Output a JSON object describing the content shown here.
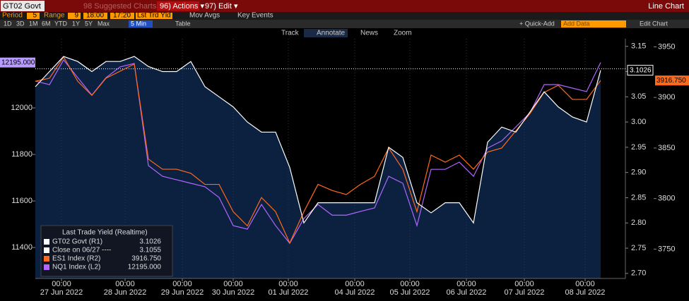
{
  "toolbar": {
    "security": "GT02 Govt",
    "suggested": "98 Suggested Charts",
    "actions": "96) Actions ▾",
    "edit": "97) Edit ▾",
    "view": "Line Chart"
  },
  "settings": {
    "period_label": "Period",
    "period": "5",
    "range_label": "Range",
    "range": "9",
    "from": "18:00",
    "to": "17:20",
    "field": "Lst Trd Yld",
    "mov_avgs": "Mov Avgs",
    "key_events": "Key Events"
  },
  "ranges": [
    "1D",
    "3D",
    "1M",
    "6M",
    "YTD",
    "1Y",
    "5Y",
    "Max"
  ],
  "interval": "5 Min",
  "table": "Table",
  "quick_add": "+ Quick-Add",
  "add_data": "Add Data",
  "edit_chart": "Edit Chart",
  "tools": [
    "Track",
    "Annotate",
    "News",
    "Zoom"
  ],
  "chart_data": {
    "type": "line",
    "legend_title": "Last Trade Yield (Realtime)",
    "grid": true,
    "x": [
      0,
      2,
      4,
      6,
      8,
      10,
      12,
      14,
      16,
      18,
      20,
      22,
      24,
      26,
      28,
      30,
      32,
      34,
      36,
      38,
      40,
      42,
      44,
      46,
      48,
      50,
      52,
      54,
      56,
      58,
      60,
      62,
      64,
      66,
      68,
      70,
      72,
      74,
      76,
      78,
      80
    ],
    "xlim": [
      0,
      83.5
    ],
    "xticks": [
      {
        "value": 3.7,
        "label": "27 Jun 2022",
        "time": "00:00"
      },
      {
        "value": 12.7,
        "label": "28 Jun 2022",
        "time": "00:00"
      },
      {
        "value": 20.8,
        "label": "29 Jun 2022",
        "time": "00:00"
      },
      {
        "value": 28,
        "label": "30 Jun 2022",
        "time": "00:00"
      },
      {
        "value": 35.8,
        "label": "01 Jul 2022",
        "time": "00:00"
      },
      {
        "value": 45.2,
        "label": "04 Jul 2022",
        "time": "00:00"
      },
      {
        "value": 53,
        "label": "05 Jul 2022",
        "time": "00:00"
      },
      {
        "value": 61,
        "label": "06 Jul 2022",
        "time": "00:00"
      },
      {
        "value": 69.2,
        "label": "07 Jul 2022",
        "time": "00:00"
      },
      {
        "value": 77.8,
        "label": "08 Jul 2022",
        "time": "00:00"
      }
    ],
    "ylim": [
      11267,
      12297
    ],
    "yticks": [
      11400,
      11600,
      11800,
      12000
    ],
    "y2lim": [
      2.69,
      3.165
    ],
    "y2ticks": [
      {
        "value": 2.7,
        "label": "2.70"
      },
      {
        "value": 2.75,
        "label": "2.75"
      },
      {
        "value": 2.8,
        "label": "2.80"
      },
      {
        "value": 2.85,
        "label": "2.85"
      },
      {
        "value": 2.9,
        "label": "2.90"
      },
      {
        "value": 2.95,
        "label": "2.95"
      },
      {
        "value": 3.0,
        "label": "3.00"
      },
      {
        "value": 3.05,
        "label": "3.05"
      },
      {
        "value": 3.1,
        "label": "3.10"
      },
      {
        "value": 3.15,
        "label": "3.15"
      }
    ],
    "y3lim": [
      3721,
      3958
    ],
    "y3ticks": [
      3750,
      3800,
      3850,
      3900,
      3950
    ],
    "reference": {
      "name": "Close on 06/27 ----",
      "value": 3.1055,
      "axis": "y2"
    },
    "series": [
      {
        "name": "GT02 Govt (R1)",
        "color": "#ffffff",
        "axis": "y2",
        "last_label": "3.1026",
        "values": [
          3.07,
          3.1,
          3.13,
          3.12,
          3.1,
          3.12,
          3.12,
          3.13,
          3.11,
          3.1,
          3.1,
          3.12,
          3.07,
          3.05,
          3.03,
          3.0,
          2.98,
          2.98,
          2.91,
          2.8,
          2.84,
          2.84,
          2.84,
          2.84,
          2.84,
          2.95,
          2.93,
          2.84,
          2.82,
          2.84,
          2.84,
          2.8,
          2.96,
          2.99,
          2.98,
          3.02,
          3.06,
          3.03,
          3.01,
          3.0,
          3.1026
        ]
      },
      {
        "name": "ES1 Index (R2)",
        "color": "#ff6a1a",
        "axis": "y3",
        "last_label": "3916.750",
        "values": [
          3916,
          3919,
          3940,
          3916,
          3902,
          3919,
          3926,
          3933,
          3839,
          3829,
          3829,
          3825,
          3814,
          3814,
          3787,
          3773,
          3801,
          3787,
          3756,
          3787,
          3814,
          3808,
          3804,
          3814,
          3822,
          3850,
          3829,
          3787,
          3843,
          3836,
          3843,
          3829,
          3846,
          3850,
          3867,
          3884,
          3905,
          3912,
          3898,
          3898,
          3916.75
        ]
      },
      {
        "name": "NQ1 Index (L2)",
        "color": "#b066ff",
        "axis": "y",
        "last_label": "12195.000",
        "values": [
          12115,
          12100,
          12206,
          12130,
          12055,
          12130,
          12176,
          12191,
          11752,
          11706,
          11691,
          11676,
          11661,
          11615,
          11494,
          11479,
          11585,
          11494,
          11418,
          11524,
          11585,
          11539,
          11539,
          11555,
          11570,
          11706,
          11676,
          11494,
          11736,
          11736,
          11767,
          11706,
          11827,
          11858,
          11918,
          11979,
          12100,
          12100,
          12085,
          12070,
          12195
        ]
      }
    ]
  }
}
